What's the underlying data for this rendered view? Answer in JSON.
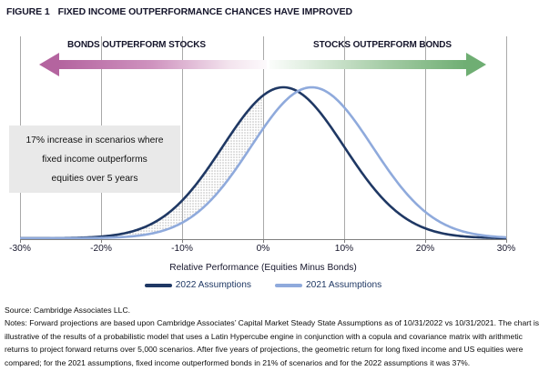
{
  "title": {
    "figure_label": "FIGURE 1",
    "text": "FIXED INCOME OUTPERFORMANCE CHANCES HAVE IMPROVED"
  },
  "chart_data": {
    "type": "line",
    "subtype": "probability-density-curves",
    "xlabel": "Relative Performance (Equities Minus Bonds)",
    "xlim": [
      -30,
      30
    ],
    "x_ticks": [
      "-30%",
      "-20%",
      "-10%",
      "0%",
      "10%",
      "20%",
      "30%"
    ],
    "x_tick_values": [
      -30,
      -20,
      -10,
      0,
      10,
      20,
      30
    ],
    "grid": "vertical-only",
    "legend_position": "bottom-center",
    "series": [
      {
        "name": "2022 Assumptions",
        "distribution": "normal",
        "mean_pct": 2.5,
        "std_pct": 7.5,
        "color": "#1f3864"
      },
      {
        "name": "2021 Assumptions",
        "distribution": "normal",
        "mean_pct": 6.0,
        "std_pct": 7.5,
        "color": "#8faadc"
      }
    ],
    "shaded_region": {
      "description": "dotted gray area between 2022 and 2021 curves for x below 0%",
      "x_min": -30,
      "x_max": 0,
      "fill_style": "gray-dot-pattern"
    },
    "annotations": {
      "left_arrow_label": "BONDS OUTPERFORM STOCKS",
      "right_arrow_label": "STOCKS OUTPERFORM BONDS",
      "callout_lines": [
        "17% increase in scenarios where",
        "fixed income outperforms",
        "equities over 5 years"
      ]
    }
  },
  "footer": {
    "source": "Source: Cambridge Associates LLC.",
    "notes": "Notes: Forward projections are based upon Cambridge Associates’ Capital Market Steady State Assumptions as of 10/31/2022 vs 10/31/2021. The chart is illustrative of the results of a probabilistic model that uses a Latin Hypercube engine in conjunction with a copula and covariance matrix with arithmetic returns to project forward returns over 5,000 scenarios. After five years of projections, the geometric return for long fixed income and US equities were compared; for the 2021 assumptions, fixed income outperformed bonds in 21% of scenarios and for the 2022 assumptions it was 37%."
  },
  "colors": {
    "curve_2022": "#1f3864",
    "curve_2021": "#8faadc",
    "bonds_arrow_magenta": "#b4649f",
    "stocks_arrow_green": "#6fae73",
    "callout_background": "#e9e9e9",
    "gridline_gray": "#a9a9a9",
    "shading_dot_gray": "#b5b5b5",
    "heading_navy": "#15152b"
  }
}
